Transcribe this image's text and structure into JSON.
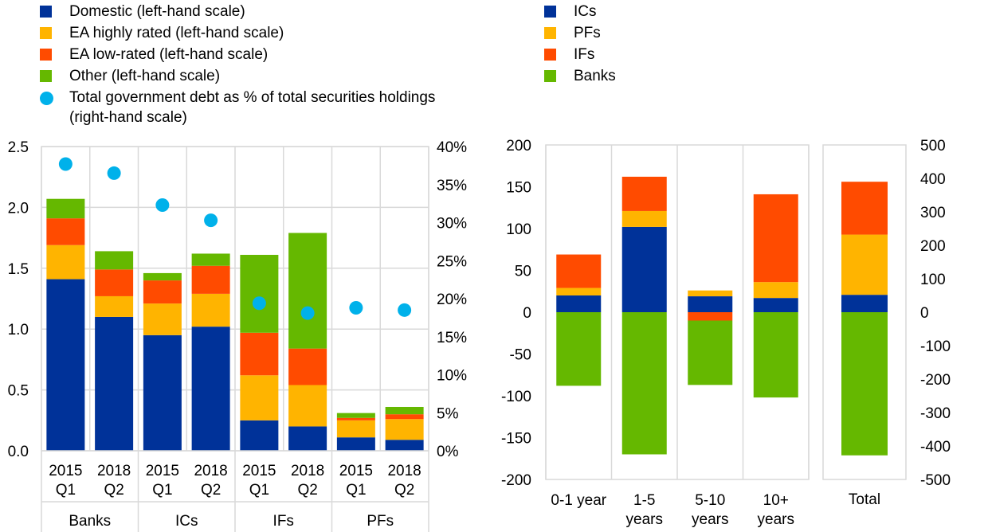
{
  "legends": {
    "left": [
      {
        "label": "Domestic (left-hand scale)",
        "color": "#003299",
        "shape": "square"
      },
      {
        "label": "EA highly rated (left-hand scale)",
        "color": "#FFB400",
        "shape": "square"
      },
      {
        "label": "EA low-rated (left-hand scale)",
        "color": "#FF4B00",
        "shape": "square"
      },
      {
        "label": "Other (left-hand scale)",
        "color": "#65B800",
        "shape": "square"
      },
      {
        "label": "Total government debt as % of total securities holdings\n(right-hand scale)",
        "color": "#00B1EA",
        "shape": "circle"
      }
    ],
    "right": [
      {
        "label": "ICs",
        "color": "#003299"
      },
      {
        "label": "PFs",
        "color": "#FFB400"
      },
      {
        "label": "IFs",
        "color": "#FF4B00"
      },
      {
        "label": "Banks",
        "color": "#65B800"
      }
    ]
  },
  "chart_data": [
    {
      "type": "bar",
      "stacked": true,
      "groups": [
        "Banks",
        "ICs",
        "IFs",
        "PFs"
      ],
      "categories": [
        {
          "group": "Banks",
          "line1": "2015",
          "line2": "Q1"
        },
        {
          "group": "Banks",
          "line1": "2018",
          "line2": "Q2"
        },
        {
          "group": "ICs",
          "line1": "2015",
          "line2": "Q1"
        },
        {
          "group": "ICs",
          "line1": "2018",
          "line2": "Q2"
        },
        {
          "group": "IFs",
          "line1": "2015",
          "line2": "Q1"
        },
        {
          "group": "IFs",
          "line1": "2018",
          "line2": "Q2"
        },
        {
          "group": "PFs",
          "line1": "2015",
          "line2": "Q1"
        },
        {
          "group": "PFs",
          "line1": "2018",
          "line2": "Q2"
        }
      ],
      "series": [
        {
          "name": "Domestic (left-hand scale)",
          "color": "#003299",
          "values": [
            1.41,
            1.1,
            0.95,
            1.02,
            0.25,
            0.2,
            0.11,
            0.09
          ]
        },
        {
          "name": "EA highly rated (left-hand scale)",
          "color": "#FFB400",
          "values": [
            0.28,
            0.17,
            0.26,
            0.27,
            0.37,
            0.34,
            0.14,
            0.17
          ]
        },
        {
          "name": "EA low-rated (left-hand scale)",
          "color": "#FF4B00",
          "values": [
            0.22,
            0.22,
            0.19,
            0.23,
            0.35,
            0.3,
            0.02,
            0.04
          ]
        },
        {
          "name": "Other (left-hand scale)",
          "color": "#65B800",
          "values": [
            0.16,
            0.15,
            0.06,
            0.1,
            0.64,
            0.95,
            0.04,
            0.06
          ]
        }
      ],
      "scatter": {
        "name": "Total government debt as % of total securities holdings (right-hand scale)",
        "color": "#00B1EA",
        "values": [
          37.7,
          36.5,
          32.3,
          30.3,
          19.4,
          18.1,
          18.8,
          18.5
        ]
      },
      "ylim": [
        0,
        2.5
      ],
      "yticks": [
        "2.5",
        "2.0",
        "1.5",
        "1.0",
        "0.5",
        "0.0"
      ],
      "y2lim": [
        0,
        40
      ],
      "y2ticks": [
        "40%",
        "35%",
        "30%",
        "25%",
        "20%",
        "15%",
        "10%",
        "5%",
        "0%"
      ]
    },
    {
      "type": "bar",
      "stacked": true,
      "categories": [
        {
          "line1": "0-1 year",
          "line2": ""
        },
        {
          "line1": "1-5",
          "line2": "years"
        },
        {
          "line1": "5-10",
          "line2": "years"
        },
        {
          "line1": "10+",
          "line2": "years"
        }
      ],
      "series": [
        {
          "name": "ICs",
          "color": "#003299",
          "values": [
            20,
            102,
            19,
            17
          ]
        },
        {
          "name": "PFs",
          "color": "#FFB400",
          "values": [
            9,
            19,
            7,
            19
          ]
        },
        {
          "name": "IFs",
          "color": "#FF4B00",
          "values": [
            40,
            41,
            -10,
            105
          ]
        },
        {
          "name": "Banks",
          "color": "#65B800",
          "values": [
            -88,
            -170,
            -77,
            -102
          ]
        }
      ],
      "ylim": [
        -200,
        200
      ],
      "yticks": [
        "200",
        "150",
        "100",
        "50",
        "0",
        "-50",
        "-100",
        "-150",
        "-200"
      ]
    },
    {
      "type": "bar",
      "stacked": true,
      "categories": [
        {
          "line1": "Total",
          "line2": ""
        }
      ],
      "series": [
        {
          "name": "ICs",
          "color": "#003299",
          "values": [
            52
          ]
        },
        {
          "name": "PFs",
          "color": "#FFB400",
          "values": [
            180
          ]
        },
        {
          "name": "IFs",
          "color": "#FF4B00",
          "values": [
            158
          ]
        },
        {
          "name": "Banks",
          "color": "#65B800",
          "values": [
            -428
          ]
        }
      ],
      "ylim": [
        -500,
        500
      ],
      "yticks": [
        "500",
        "400",
        "300",
        "200",
        "100",
        "0",
        "-100",
        "-200",
        "-300",
        "-400",
        "-500"
      ]
    }
  ]
}
